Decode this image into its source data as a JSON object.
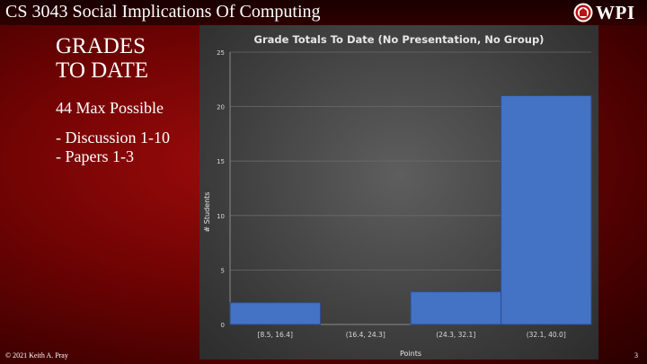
{
  "header": {
    "course_title": "CS 3043 Social Implications Of Computing",
    "logo_text": "WPI"
  },
  "slide": {
    "heading_lines": [
      "GRADES",
      "TO DATE"
    ],
    "max_possible": "44 Max Possible",
    "bullets": [
      "- Discussion 1-10",
      "- Papers 1-3"
    ]
  },
  "footer": {
    "copyright": "© 2021 Keith A. Pray",
    "page_number": "3"
  },
  "colors": {
    "bar_fill": "#4472c4",
    "background_red": "#8b0000"
  },
  "chart_data": {
    "type": "bar",
    "title": "Grade Totals To Date (No Presentation, No Group)",
    "xlabel": "Points",
    "ylabel": "# Students",
    "categories": [
      "[8.5, 16.4]",
      "(16.4, 24.3]",
      "(24.3, 32.1]",
      "(32.1, 40.0]"
    ],
    "values": [
      2,
      0,
      3,
      21
    ],
    "ylim": [
      0,
      25
    ],
    "yticks": [
      0,
      5,
      10,
      15,
      20,
      25
    ],
    "grid": true,
    "legend": "none"
  }
}
